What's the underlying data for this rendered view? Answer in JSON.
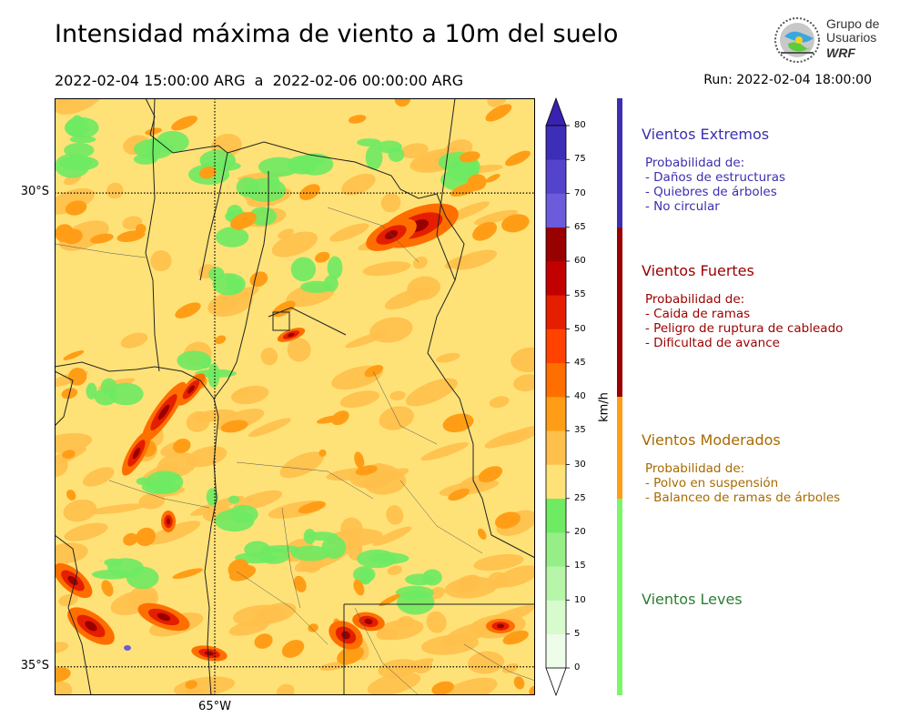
{
  "header": {
    "title": "Intensidad máxima de viento a 10m del suelo",
    "period": "2022-02-04 15:00:00 ARG  a  2022-02-06 00:00:00 ARG",
    "run": "Run: 2022-02-04 18:00:00"
  },
  "logo": {
    "line1": "Grupo de",
    "line2": "Usuarios",
    "line3": "WRF"
  },
  "map": {
    "lat_labels": [
      {
        "text": "30°S",
        "lat": -30
      },
      {
        "text": "35°S",
        "lat": -35
      }
    ],
    "lon_labels": [
      {
        "text": "65°W",
        "lon": -65
      }
    ],
    "extent": {
      "lon_min": -66.7,
      "lon_max": -61.6,
      "lat_min": -35.3,
      "lat_max": -29.0
    }
  },
  "colorbar": {
    "unit": "km/h",
    "ticks": [
      "0",
      "5",
      "10",
      "15",
      "20",
      "25",
      "30",
      "35",
      "40",
      "45",
      "50",
      "55",
      "60",
      "65",
      "70",
      "75",
      "80"
    ],
    "colors": [
      "#eefde9",
      "#d7fbcc",
      "#b7f5a8",
      "#96ee86",
      "#6eea63",
      "#ffe277",
      "#ffc04b",
      "#ff9e16",
      "#ff6f00",
      "#ff4200",
      "#e51e00",
      "#c20000",
      "#990000",
      "#6c5bdb",
      "#5444cc",
      "#3d2eb8"
    ],
    "low_cap_color": "#ffffff",
    "high_cap_color": "#3a22b0"
  },
  "categories": [
    {
      "title": "Vientos Extremos",
      "color": "#3b2fb0",
      "bar_color": "#3b2fb0",
      "from": 65,
      "to": 80,
      "lines": [
        "Probabilidad de:",
        "- Daños de estructuras",
        "- Quiebres de árboles",
        "- No circular"
      ]
    },
    {
      "title": "Vientos Fuertes",
      "color": "#9b0000",
      "bar_color": "#990000",
      "from": 40,
      "to": 65,
      "lines": [
        "Probabilidad de:",
        "- Caida de ramas",
        "- Peligro de ruptura de cableado",
        "- Dificultad de avance"
      ]
    },
    {
      "title": "Vientos Moderados",
      "color": "#a86a00",
      "bar_color": "#ff9e16",
      "from": 25,
      "to": 40,
      "lines": [
        "Probabilidad de:",
        "- Polvo en suspensión",
        "- Balanceo de ramas de árboles"
      ]
    },
    {
      "title": "Vientos Leves",
      "color": "#2e7d32",
      "bar_color": "#7cf56a",
      "from": 0,
      "to": 25,
      "lines": []
    }
  ]
}
